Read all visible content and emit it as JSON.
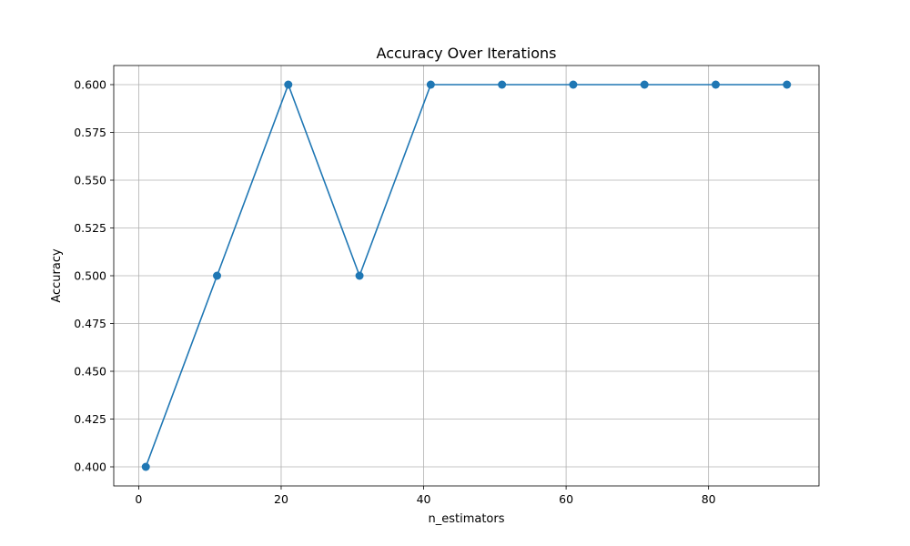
{
  "chart_data": {
    "type": "line",
    "title": "Accuracy Over Iterations",
    "xlabel": "n_estimators",
    "ylabel": "Accuracy",
    "x": [
      1,
      11,
      21,
      31,
      41,
      51,
      61,
      71,
      81,
      91
    ],
    "series": [
      {
        "values": [
          0.4,
          0.5,
          0.6,
          0.5,
          0.6,
          0.6,
          0.6,
          0.6,
          0.6,
          0.6
        ],
        "color": "#1f77b4",
        "marker": "circle"
      }
    ],
    "xlim": [
      -3.5,
      95.5
    ],
    "ylim": [
      0.39,
      0.61
    ],
    "xticks": [
      0,
      20,
      40,
      60,
      80
    ],
    "xtick_labels": [
      "0",
      "20",
      "40",
      "60",
      "80"
    ],
    "yticks": [
      0.4,
      0.425,
      0.45,
      0.475,
      0.5,
      0.525,
      0.55,
      0.575,
      0.6
    ],
    "ytick_labels": [
      "0.400",
      "0.425",
      "0.450",
      "0.475",
      "0.500",
      "0.525",
      "0.550",
      "0.575",
      "0.600"
    ],
    "grid": true,
    "legend": "none"
  }
}
